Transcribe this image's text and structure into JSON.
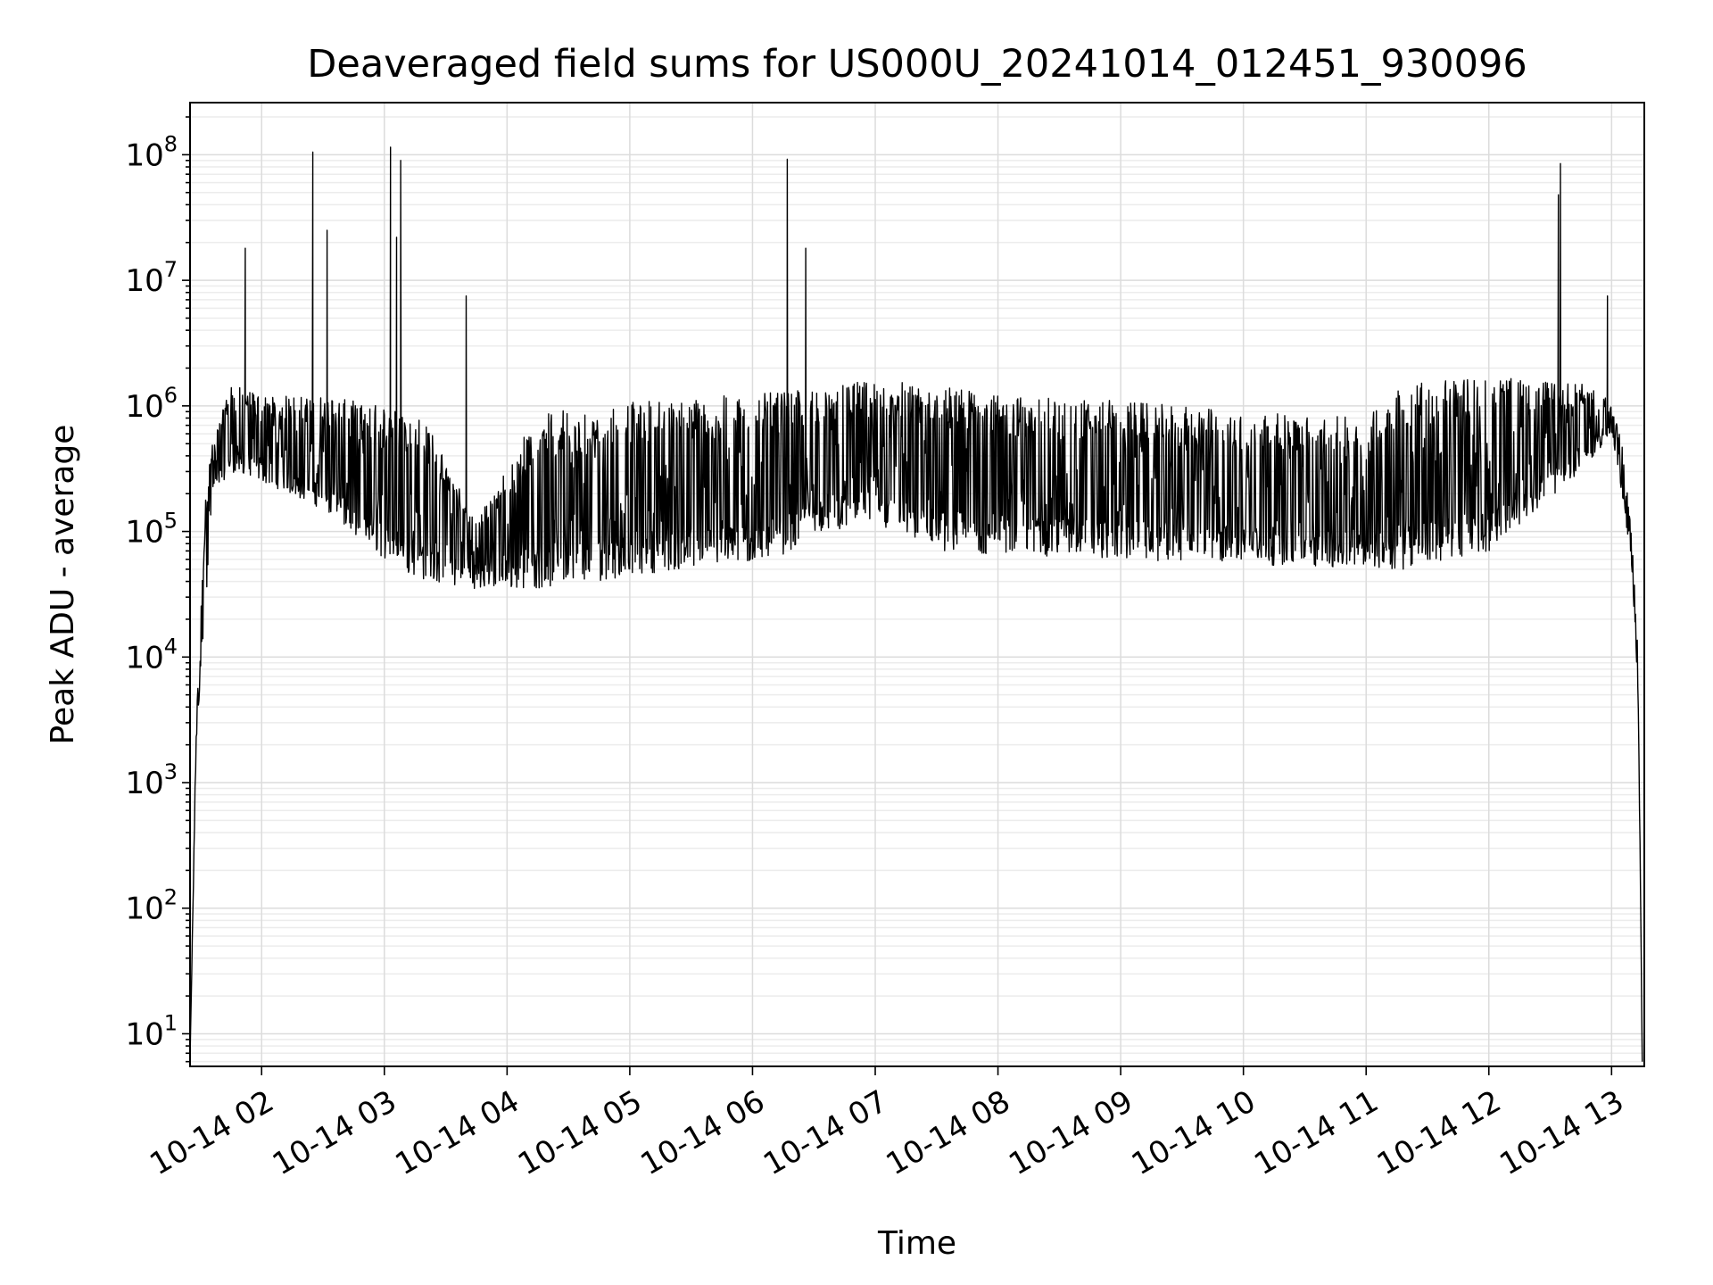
{
  "chart_data": {
    "type": "line",
    "title": "Deaveraged field sums for US000U_20241014_012451_930096",
    "xlabel": "Time",
    "ylabel": "Peak ADU - average",
    "yscale": "log",
    "grid": "major and minor",
    "legend": "none",
    "xlim": [
      "2024-10-14T01:25",
      "2024-10-14T13:16"
    ],
    "ylim": [
      5.5,
      260000000
    ],
    "x_ticks": [
      {
        "value": "2024-10-14T02:00",
        "label": "10-14 02"
      },
      {
        "value": "2024-10-14T03:00",
        "label": "10-14 03"
      },
      {
        "value": "2024-10-14T04:00",
        "label": "10-14 04"
      },
      {
        "value": "2024-10-14T05:00",
        "label": "10-14 05"
      },
      {
        "value": "2024-10-14T06:00",
        "label": "10-14 06"
      },
      {
        "value": "2024-10-14T07:00",
        "label": "10-14 07"
      },
      {
        "value": "2024-10-14T08:00",
        "label": "10-14 08"
      },
      {
        "value": "2024-10-14T09:00",
        "label": "10-14 09"
      },
      {
        "value": "2024-10-14T10:00",
        "label": "10-14 10"
      },
      {
        "value": "2024-10-14T11:00",
        "label": "10-14 11"
      },
      {
        "value": "2024-10-14T12:00",
        "label": "10-14 12"
      },
      {
        "value": "2024-10-14T13:00",
        "label": "10-14 13"
      }
    ],
    "y_ticks": [
      {
        "value": 10,
        "base": "10",
        "exp": "1"
      },
      {
        "value": 100,
        "base": "10",
        "exp": "2"
      },
      {
        "value": 1000,
        "base": "10",
        "exp": "3"
      },
      {
        "value": 10000,
        "base": "10",
        "exp": "4"
      },
      {
        "value": 100000,
        "base": "10",
        "exp": "5"
      },
      {
        "value": 1000000,
        "base": "10",
        "exp": "6"
      },
      {
        "value": 10000000,
        "base": "10",
        "exp": "7"
      },
      {
        "value": 100000000,
        "base": "10",
        "exp": "8"
      }
    ],
    "series": [
      {
        "color": "#000000",
        "envelope_points": [
          {
            "t": "2024-10-14T01:25",
            "low": 6,
            "high": 6
          },
          {
            "t": "2024-10-14T01:28",
            "low": 2000,
            "high": 3000
          },
          {
            "t": "2024-10-14T01:33",
            "low": 30000,
            "high": 250000
          },
          {
            "t": "2024-10-14T01:36",
            "low": 200000,
            "high": 500000
          },
          {
            "t": "2024-10-14T01:45",
            "low": 300000,
            "high": 1500000
          },
          {
            "t": "2024-10-14T02:00",
            "low": 250000,
            "high": 1200000
          },
          {
            "t": "2024-10-14T02:30",
            "low": 150000,
            "high": 1200000
          },
          {
            "t": "2024-10-14T03:00",
            "low": 60000,
            "high": 1000000
          },
          {
            "t": "2024-10-14T03:20",
            "low": 40000,
            "high": 800000
          },
          {
            "t": "2024-10-14T03:45",
            "low": 35000,
            "high": 120000
          },
          {
            "t": "2024-10-14T04:15",
            "low": 35000,
            "high": 900000
          },
          {
            "t": "2024-10-14T04:45",
            "low": 40000,
            "high": 1000000
          },
          {
            "t": "2024-10-14T05:00",
            "low": 45000,
            "high": 1100000
          },
          {
            "t": "2024-10-14T05:30",
            "low": 50000,
            "high": 1150000
          },
          {
            "t": "2024-10-14T06:00",
            "low": 55000,
            "high": 1250000
          },
          {
            "t": "2024-10-14T06:20",
            "low": 70000,
            "high": 1300000
          },
          {
            "t": "2024-10-14T06:30",
            "low": 100000,
            "high": 1400000
          },
          {
            "t": "2024-10-14T07:00",
            "low": 110000,
            "high": 1600000
          },
          {
            "t": "2024-10-14T07:30",
            "low": 70000,
            "high": 1500000
          },
          {
            "t": "2024-10-14T08:00",
            "low": 65000,
            "high": 1200000
          },
          {
            "t": "2024-10-14T09:00",
            "low": 60000,
            "high": 1100000
          },
          {
            "t": "2024-10-14T10:00",
            "low": 55000,
            "high": 900000
          },
          {
            "t": "2024-10-14T11:00",
            "low": 50000,
            "high": 800000
          },
          {
            "t": "2024-10-14T11:20",
            "low": 50000,
            "high": 1600000
          },
          {
            "t": "2024-10-14T12:00",
            "low": 70000,
            "high": 1700000
          },
          {
            "t": "2024-10-14T12:45",
            "low": 300000,
            "high": 1500000
          },
          {
            "t": "2024-10-14T13:00",
            "low": 600000,
            "high": 1100000
          },
          {
            "t": "2024-10-14T13:05",
            "low": 200000,
            "high": 500000
          },
          {
            "t": "2024-10-14T13:10",
            "low": 50000,
            "high": 90000
          },
          {
            "t": "2024-10-14T13:13",
            "low": 5000,
            "high": 10000
          },
          {
            "t": "2024-10-14T13:15",
            "low": 6,
            "high": 6
          }
        ],
        "spikes": [
          {
            "t": "2024-10-14T01:52",
            "value": 18000000
          },
          {
            "t": "2024-10-14T02:25",
            "value": 105000000
          },
          {
            "t": "2024-10-14T02:32",
            "value": 25000000
          },
          {
            "t": "2024-10-14T03:03",
            "value": 115000000
          },
          {
            "t": "2024-10-14T03:06",
            "value": 22000000
          },
          {
            "t": "2024-10-14T03:08",
            "value": 90000000
          },
          {
            "t": "2024-10-14T03:40",
            "value": 7500000
          },
          {
            "t": "2024-10-14T06:17",
            "value": 92000000
          },
          {
            "t": "2024-10-14T06:26",
            "value": 18000000
          },
          {
            "t": "2024-10-14T12:35",
            "value": 85000000
          },
          {
            "t": "2024-10-14T12:34",
            "value": 48000000
          },
          {
            "t": "2024-10-14T12:58",
            "value": 7500000
          }
        ]
      }
    ]
  }
}
